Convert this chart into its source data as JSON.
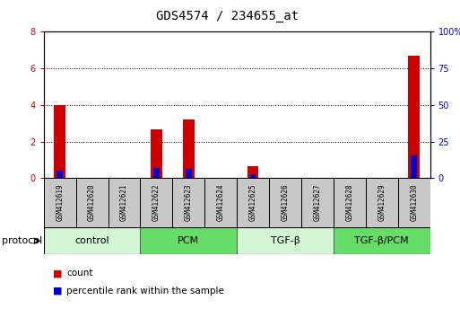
{
  "title": "GDS4574 / 234655_at",
  "samples": [
    "GSM412619",
    "GSM412620",
    "GSM412621",
    "GSM412622",
    "GSM412623",
    "GSM412624",
    "GSM412625",
    "GSM412626",
    "GSM412627",
    "GSM412628",
    "GSM412629",
    "GSM412630"
  ],
  "count_values": [
    4.0,
    0.0,
    0.0,
    2.65,
    3.2,
    0.0,
    0.65,
    0.0,
    0.0,
    0.0,
    0.0,
    6.7
  ],
  "percentile_values": [
    0.42,
    0.0,
    0.0,
    0.55,
    0.5,
    0.0,
    0.2,
    0.0,
    0.0,
    0.0,
    0.0,
    1.25
  ],
  "ylim_left": [
    0,
    8
  ],
  "ylim_right": [
    0,
    100
  ],
  "yticks_left": [
    0,
    2,
    4,
    6,
    8
  ],
  "yticks_right": [
    0,
    25,
    50,
    75,
    100
  ],
  "ytick_right_labels": [
    "0",
    "25",
    "50",
    "75",
    "100%"
  ],
  "groups": [
    {
      "label": "control",
      "start": 0,
      "end": 3,
      "color": "#d4f5d4"
    },
    {
      "label": "PCM",
      "start": 3,
      "end": 6,
      "color": "#66dd66"
    },
    {
      "label": "TGF-β",
      "start": 6,
      "end": 9,
      "color": "#d4f5d4"
    },
    {
      "label": "TGF-β/PCM",
      "start": 9,
      "end": 12,
      "color": "#66dd66"
    }
  ],
  "bar_color_red": "#cc0000",
  "bar_color_blue": "#0000cc",
  "bar_width": 0.35,
  "percentile_bar_width": 0.18,
  "axis_color_left": "#cc0000",
  "axis_color_right": "#0000cc",
  "sample_box_color": "#c8c8c8",
  "legend_count": "count",
  "legend_percentile": "percentile rank within the sample",
  "protocol_label": "protocol",
  "title_fontsize": 10,
  "tick_fontsize": 7,
  "sample_fontsize": 5.5,
  "group_fontsize": 8,
  "legend_fontsize": 7.5
}
